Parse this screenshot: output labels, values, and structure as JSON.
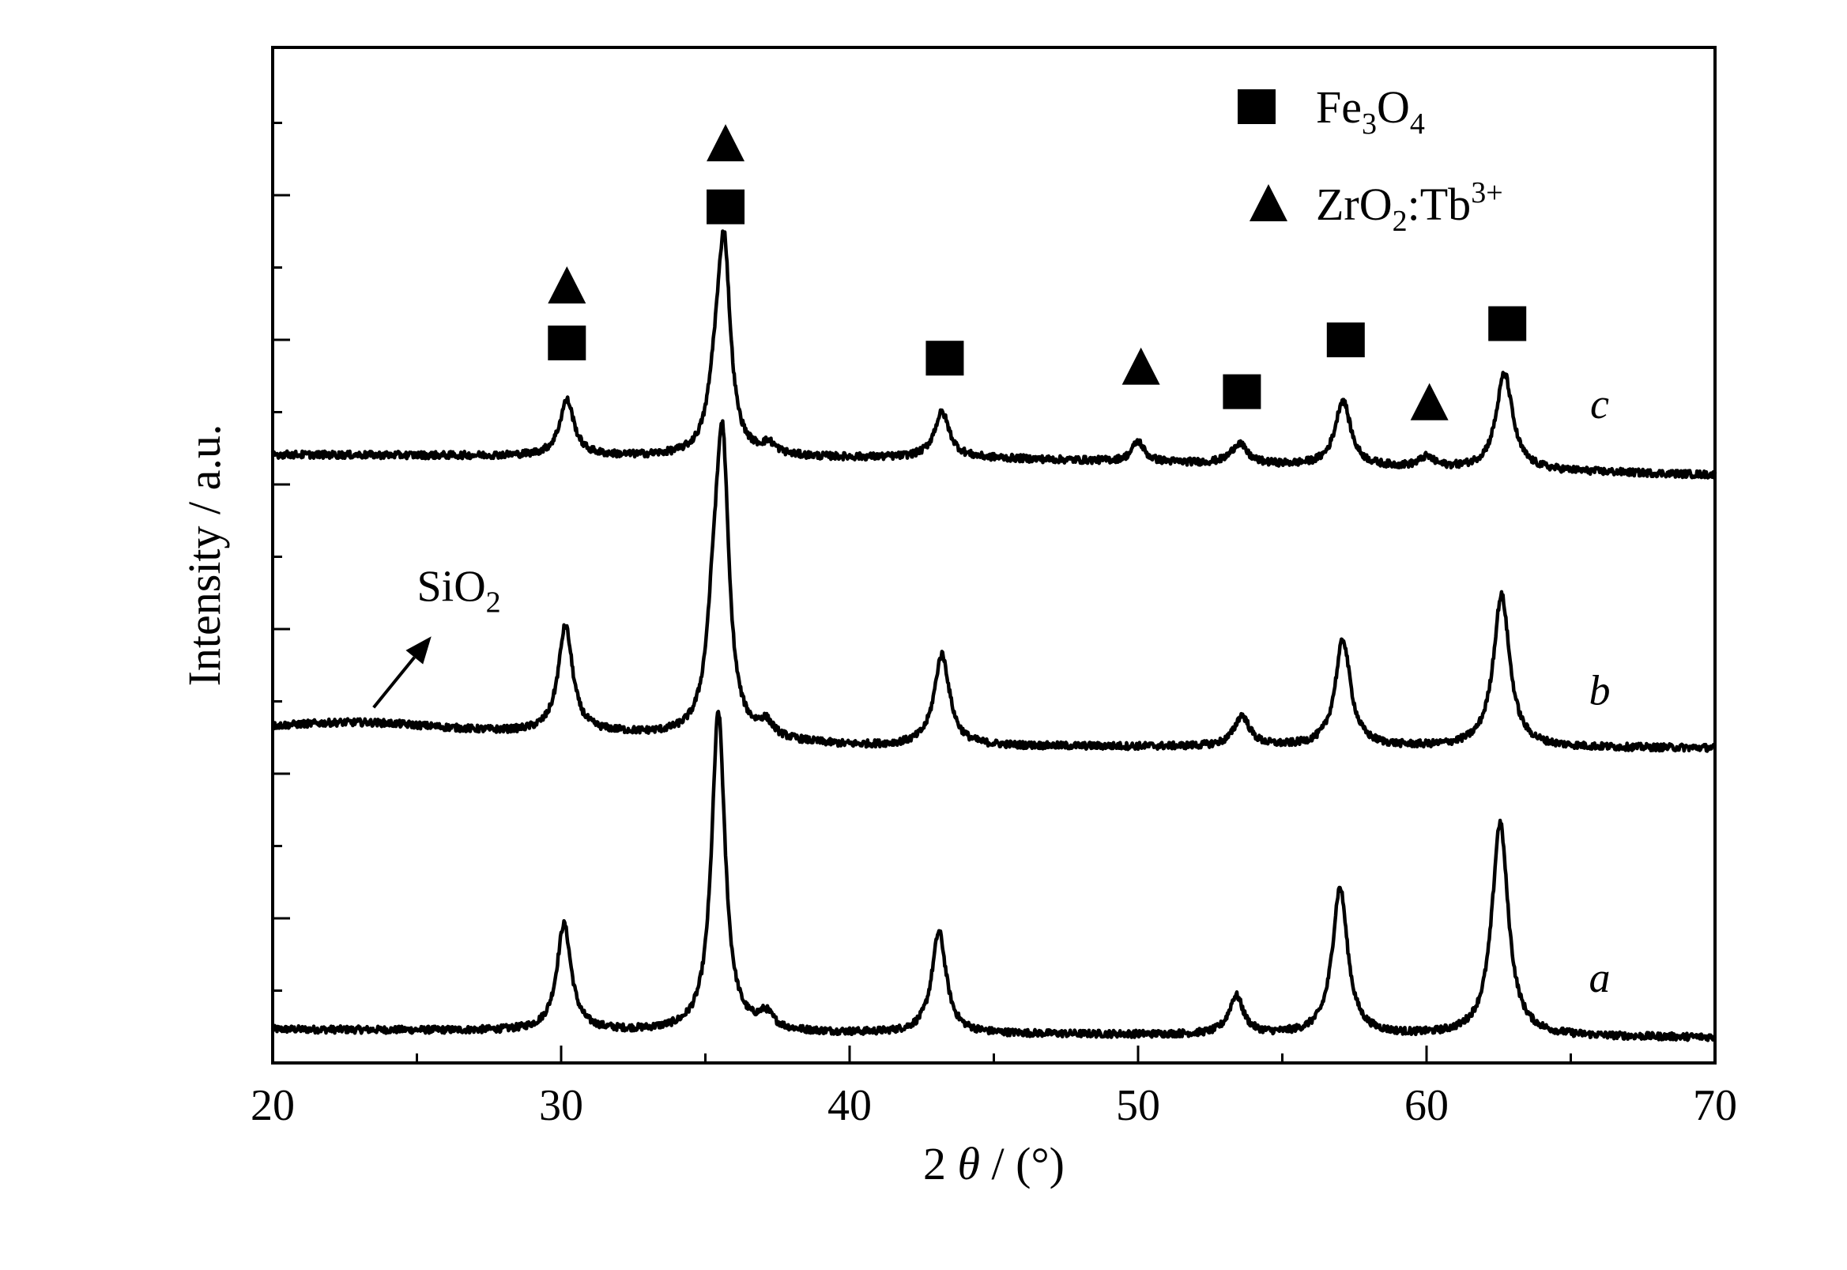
{
  "chart_data": {
    "type": "line",
    "title": "",
    "xlabel": "2θ / (°)",
    "xlabel_parts": {
      "num": "2",
      "theta": "θ",
      "rest": "/ (°)"
    },
    "ylabel": "Intensity / a.u.",
    "xlim": [
      20,
      70
    ],
    "xticks": [
      20,
      30,
      40,
      50,
      60,
      70
    ],
    "x_minor_step": 5,
    "ylim": [
      0,
      100
    ],
    "grid": false,
    "y_tick_labels": false,
    "series": [
      {
        "name": "a",
        "offset": 2.5,
        "baseline": [
          [
            20,
            0.8
          ],
          [
            40,
            0.4
          ],
          [
            70,
            0
          ]
        ],
        "noise": 0.35,
        "peaks": [
          {
            "x": 30.1,
            "h": 10.5,
            "w": 0.3
          },
          {
            "x": 35.45,
            "h": 31.5,
            "w": 0.28
          },
          {
            "x": 37.1,
            "h": 1.5,
            "w": 0.3
          },
          {
            "x": 43.1,
            "h": 10.0,
            "w": 0.3
          },
          {
            "x": 53.4,
            "h": 3.8,
            "w": 0.3
          },
          {
            "x": 57.0,
            "h": 14.5,
            "w": 0.32
          },
          {
            "x": 62.55,
            "h": 21.0,
            "w": 0.34
          }
        ],
        "broad": []
      },
      {
        "name": "b",
        "offset": 31.0,
        "baseline": [
          [
            20,
            1.8
          ],
          [
            32,
            1.4
          ],
          [
            40,
            0.2
          ],
          [
            70,
            0
          ]
        ],
        "noise": 0.35,
        "peaks": [
          {
            "x": 30.15,
            "h": 10.5,
            "w": 0.3
          },
          {
            "x": 35.3,
            "h": 10.0,
            "w": 0.3
          },
          {
            "x": 35.6,
            "h": 26.0,
            "w": 0.26
          },
          {
            "x": 37.1,
            "h": 1.4,
            "w": 0.3
          },
          {
            "x": 43.2,
            "h": 9.0,
            "w": 0.32
          },
          {
            "x": 53.6,
            "h": 3.0,
            "w": 0.32
          },
          {
            "x": 57.1,
            "h": 10.5,
            "w": 0.32
          },
          {
            "x": 62.6,
            "h": 15.0,
            "w": 0.34
          }
        ],
        "broad": [
          {
            "x": 23.0,
            "h": 0.8,
            "w": 3.5
          }
        ]
      },
      {
        "name": "c",
        "offset": 59.5,
        "baseline": [
          [
            20,
            0.4
          ],
          [
            45,
            0.0
          ],
          [
            70,
            -1.6
          ]
        ],
        "noise": 0.35,
        "peaks": [
          {
            "x": 30.2,
            "h": 5.5,
            "w": 0.3
          },
          {
            "x": 35.35,
            "h": 5.5,
            "w": 0.3
          },
          {
            "x": 35.65,
            "h": 19.5,
            "w": 0.26
          },
          {
            "x": 37.2,
            "h": 1.0,
            "w": 0.3
          },
          {
            "x": 43.2,
            "h": 4.5,
            "w": 0.32
          },
          {
            "x": 50.0,
            "h": 2.0,
            "w": 0.25
          },
          {
            "x": 53.5,
            "h": 2.0,
            "w": 0.32
          },
          {
            "x": 57.1,
            "h": 6.5,
            "w": 0.32
          },
          {
            "x": 60.0,
            "h": 1.0,
            "w": 0.3
          },
          {
            "x": 62.7,
            "h": 9.5,
            "w": 0.34
          }
        ],
        "broad": []
      }
    ],
    "series_label_positions": [
      {
        "name": "a",
        "x": 66.0,
        "y": 7.0
      },
      {
        "name": "b",
        "x": 66.0,
        "y": 35.3
      },
      {
        "name": "c",
        "x": 66.0,
        "y": 63.5
      }
    ],
    "markers": [
      {
        "type": "square",
        "x": 30.2,
        "y": 70.9
      },
      {
        "type": "triangle",
        "x": 30.2,
        "y": 76.5
      },
      {
        "type": "square",
        "x": 35.7,
        "y": 84.3
      },
      {
        "type": "triangle",
        "x": 35.7,
        "y": 90.5
      },
      {
        "type": "square",
        "x": 43.3,
        "y": 69.4
      },
      {
        "type": "triangle",
        "x": 50.1,
        "y": 68.5
      },
      {
        "type": "square",
        "x": 53.6,
        "y": 66.1
      },
      {
        "type": "square",
        "x": 57.2,
        "y": 71.2
      },
      {
        "type": "triangle",
        "x": 60.1,
        "y": 65.0
      },
      {
        "type": "square",
        "x": 62.8,
        "y": 72.8
      }
    ],
    "legend": {
      "position": "top-right",
      "entries": [
        {
          "marker": "square",
          "label": "Fe3O4",
          "parts": [
            [
              "Fe",
              ""
            ],
            [
              "3",
              "sub"
            ],
            [
              "O",
              ""
            ],
            [
              "4",
              "sub"
            ]
          ]
        },
        {
          "marker": "triangle",
          "label": "ZrO2:Tb3+",
          "parts": [
            [
              "ZrO",
              ""
            ],
            [
              "2",
              "sub"
            ],
            [
              ":Tb",
              ""
            ],
            [
              "3+",
              "sup"
            ]
          ]
        }
      ]
    },
    "annotations": [
      {
        "label": "SiO2",
        "parts": [
          [
            "SiO",
            ""
          ],
          [
            "2",
            "sub"
          ]
        ],
        "arrow_from": [
          23.5,
          35.0
        ],
        "arrow_to": [
          25.5,
          42.0
        ],
        "text_at": [
          25.0,
          45.5
        ]
      }
    ]
  }
}
